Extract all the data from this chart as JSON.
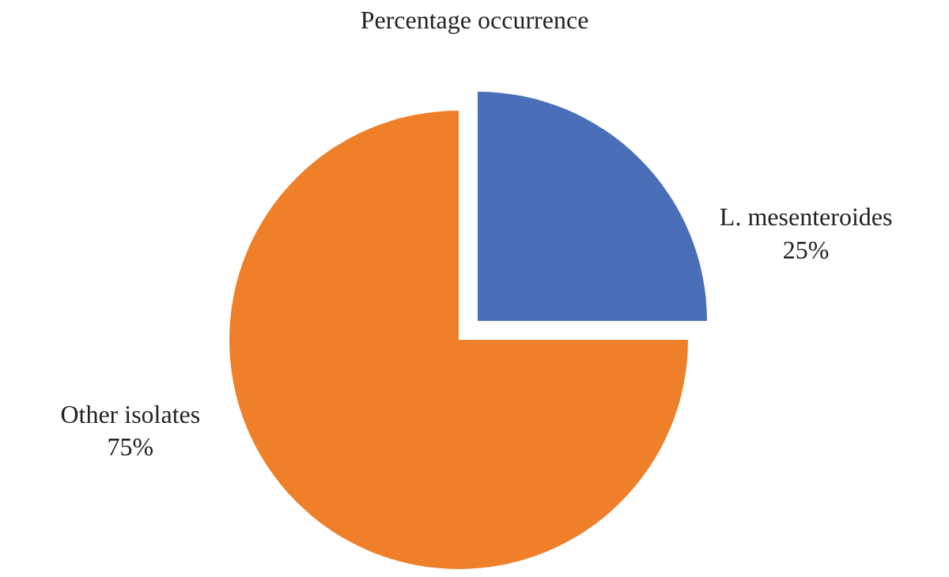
{
  "chart_data": {
    "type": "pie",
    "title": "Percentage occurrence",
    "categories": [
      "L. mesenteroides",
      "Other isolates"
    ],
    "values": [
      25,
      75
    ],
    "colors": [
      "#4a6fb8",
      "#f07f2a"
    ],
    "value_labels": [
      "25%",
      "75%"
    ]
  }
}
